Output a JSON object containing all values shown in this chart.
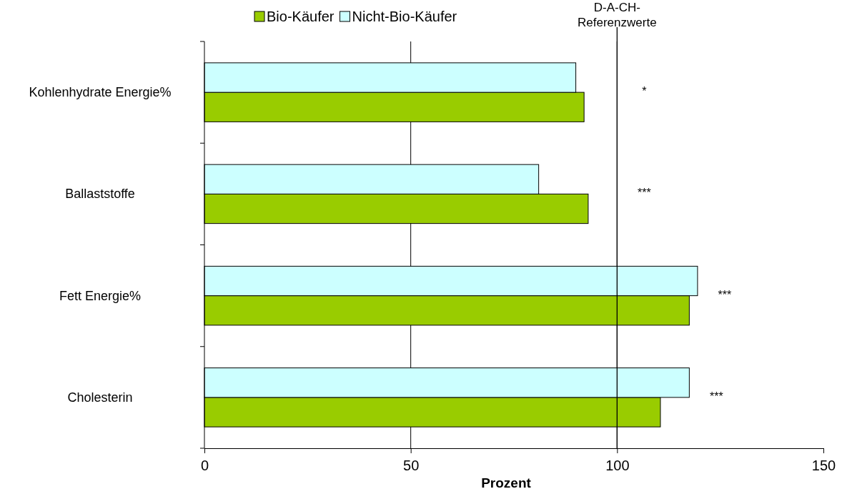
{
  "chart_data": {
    "type": "bar",
    "orientation": "horizontal",
    "xlabel": "Prozent",
    "categories": [
      "Kohlenhydrate Energie%",
      "Ballaststoffe",
      "Fett Energie%",
      "Cholesterin"
    ],
    "series": [
      {
        "name": "Bio-Käufer",
        "color": "#99cc00",
        "values": [
          92,
          93,
          117.5,
          110.5
        ]
      },
      {
        "name": "Nicht-Bio-Käufer",
        "color": "#ccffff",
        "values": [
          90,
          81,
          119.5,
          117.5
        ]
      }
    ],
    "xlim": [
      0,
      150
    ],
    "xticks": [
      0,
      50,
      100,
      150
    ],
    "grid": "x",
    "legend": "top",
    "ref_lines": [
      {
        "axis": "x",
        "value": 100,
        "label": "D-A-CH-Referenzwerte",
        "color": "#000000"
      }
    ],
    "annotations": [
      "*",
      "***",
      "***",
      "***"
    ]
  }
}
